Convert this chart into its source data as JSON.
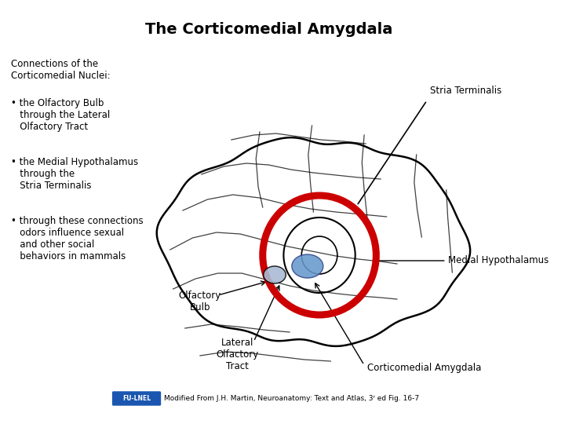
{
  "title": "The Corticomedial Amygdala",
  "title_fontsize": 14,
  "title_fontweight": "bold",
  "bg_color": "#ffffff",
  "text_color": "#000000",
  "left_header": "Connections of the\nCorticomedial Nuclei:",
  "bullet1": "• the Olfactory Bulb\n   through the Lateral\n   Olfactory Tract",
  "bullet2": "• the Medial Hypothalamus\n   through the\n   Stria Terminalis",
  "bullet3": "• through these connections\n   odors influence sexual\n   and other social\n   behaviors in mammals",
  "label_stria": "Stria Terminalis",
  "label_medial": "Medial Hypothalamus",
  "label_olfactory_bulb": "Olfactory\nBulb",
  "label_lateral": "Lateral\nOlfactory\nTract",
  "label_corticomedial": "Corticomedial Amygdala",
  "footer_text": "Modified From J.H. Martin, Neuroanatomy: Text and Atlas, 3ʳ ed Fig. 16-7",
  "footer_badge_color": "#1a56b0",
  "brain_color": "#000000",
  "stria_color": "#cc0000",
  "amygdala_fill": "#6699cc",
  "amygdala_dark": "#334488"
}
